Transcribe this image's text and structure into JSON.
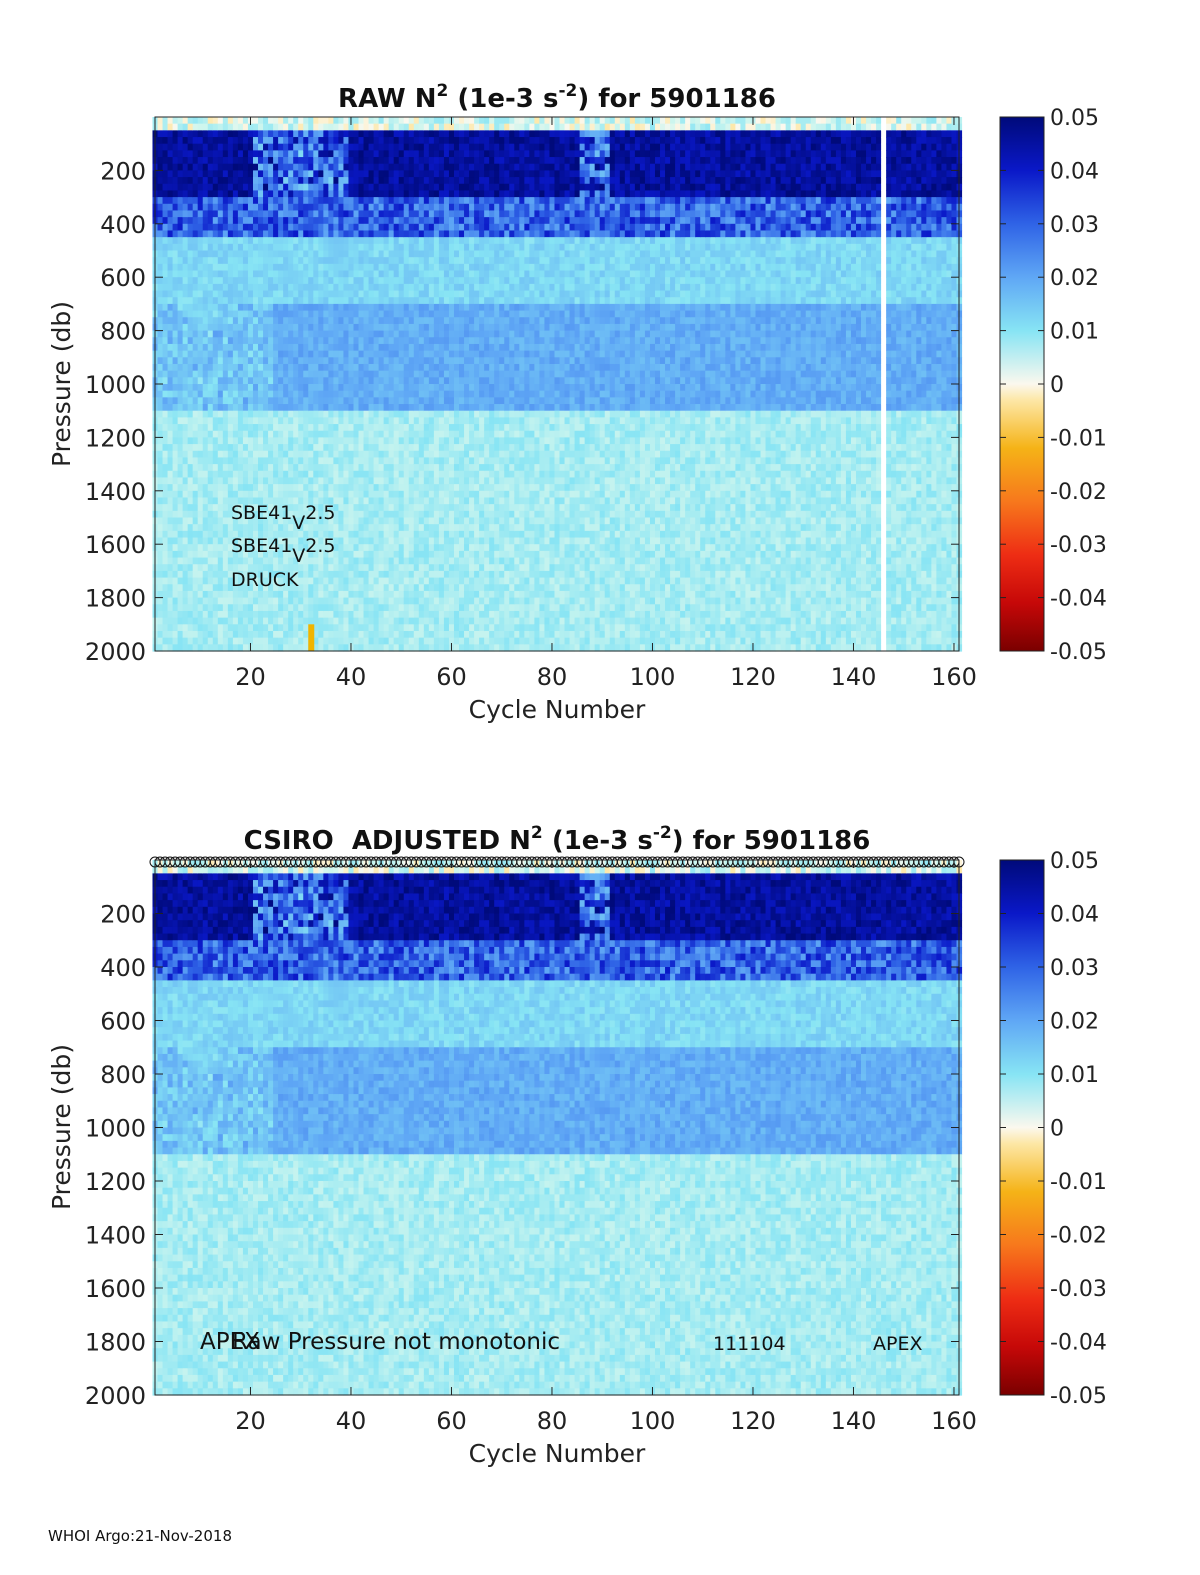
{
  "footer": "WHOI Argo:21-Nov-2018",
  "chart_data": [
    {
      "type": "heatmap",
      "title": "RAW N² (1e-3 s⁻²) for 5901186",
      "title_parts": {
        "lead": "RAW N",
        "sup1": "2",
        "mid": " (1e-3 s",
        "sup2": "-2",
        "tail": ") for 5901186"
      },
      "xlabel": "Cycle Number",
      "ylabel": "Pressure (db)",
      "xlim": [
        1,
        161
      ],
      "ylim": [
        0,
        2000
      ],
      "y_reversed": true,
      "xticks": [
        20,
        40,
        60,
        80,
        100,
        120,
        140,
        160
      ],
      "yticks": [
        200,
        400,
        600,
        800,
        1000,
        1200,
        1400,
        1600,
        1800,
        2000
      ],
      "colorbar": {
        "clim": [
          -0.05,
          0.05
        ],
        "ticks": [
          "0.05",
          "0.04",
          "0.03",
          "0.02",
          "0.01",
          "0",
          "-0.01",
          "-0.02",
          "-0.03",
          "-0.04",
          "-0.05"
        ],
        "colormap": "blue-cyan-white-yellow-red"
      },
      "missing_cycles": [
        146
      ],
      "bottom_marks": [
        {
          "cycle": 32,
          "color": "#f0b400"
        }
      ],
      "annotations": [
        {
          "text": "SBE41",
          "sub": "V",
          "after": "2.5"
        },
        {
          "text": "SBE41",
          "sub": "V",
          "after": "2.5"
        },
        {
          "text": "DRUCK",
          "sub": "",
          "after": ""
        }
      ],
      "profile_markers": false,
      "layers": [
        {
          "p_top": 0,
          "p_bottom": 30,
          "value": 0.003
        },
        {
          "p_top": 30,
          "p_bottom": 300,
          "value": 0.045
        },
        {
          "p_top": 300,
          "p_bottom": 450,
          "value": 0.03
        },
        {
          "p_top": 450,
          "p_bottom": 700,
          "value": 0.012
        },
        {
          "p_top": 700,
          "p_bottom": 1100,
          "value": 0.019
        },
        {
          "p_top": 1100,
          "p_bottom": 2000,
          "value": 0.007
        }
      ]
    },
    {
      "type": "heatmap",
      "title": "CSIRO  ADJUSTED N² (1e-3 s⁻²) for 5901186",
      "title_parts": {
        "lead": "CSIRO  ADJUSTED N",
        "sup1": "2",
        "mid": " (1e-3 s",
        "sup2": "-2",
        "tail": ") for 5901186"
      },
      "xlabel": "Cycle Number",
      "ylabel": "Pressure (db)",
      "xlim": [
        1,
        161
      ],
      "ylim": [
        0,
        2000
      ],
      "y_reversed": true,
      "xticks": [
        20,
        40,
        60,
        80,
        100,
        120,
        140,
        160
      ],
      "yticks": [
        200,
        400,
        600,
        800,
        1000,
        1200,
        1400,
        1600,
        1800,
        2000
      ],
      "colorbar": {
        "clim": [
          -0.05,
          0.05
        ],
        "ticks": [
          "0.05",
          "0.04",
          "0.03",
          "0.02",
          "0.01",
          "0",
          "-0.01",
          "-0.02",
          "-0.03",
          "-0.04",
          "-0.05"
        ],
        "colormap": "blue-cyan-white-yellow-red"
      },
      "missing_cycles": [],
      "bottom_marks": [],
      "annotations": [
        {
          "text": "APEX"
        },
        {
          "text": "Raw Pressure not monotonic"
        },
        {
          "text": "111104"
        },
        {
          "text": "APEX"
        }
      ],
      "profile_markers": true,
      "layers": [
        {
          "p_top": 0,
          "p_bottom": 30,
          "value": 0.003
        },
        {
          "p_top": 30,
          "p_bottom": 300,
          "value": 0.045
        },
        {
          "p_top": 300,
          "p_bottom": 450,
          "value": 0.03
        },
        {
          "p_top": 450,
          "p_bottom": 700,
          "value": 0.012
        },
        {
          "p_top": 700,
          "p_bottom": 1100,
          "value": 0.019
        },
        {
          "p_top": 1100,
          "p_bottom": 2000,
          "value": 0.007
        }
      ]
    }
  ]
}
